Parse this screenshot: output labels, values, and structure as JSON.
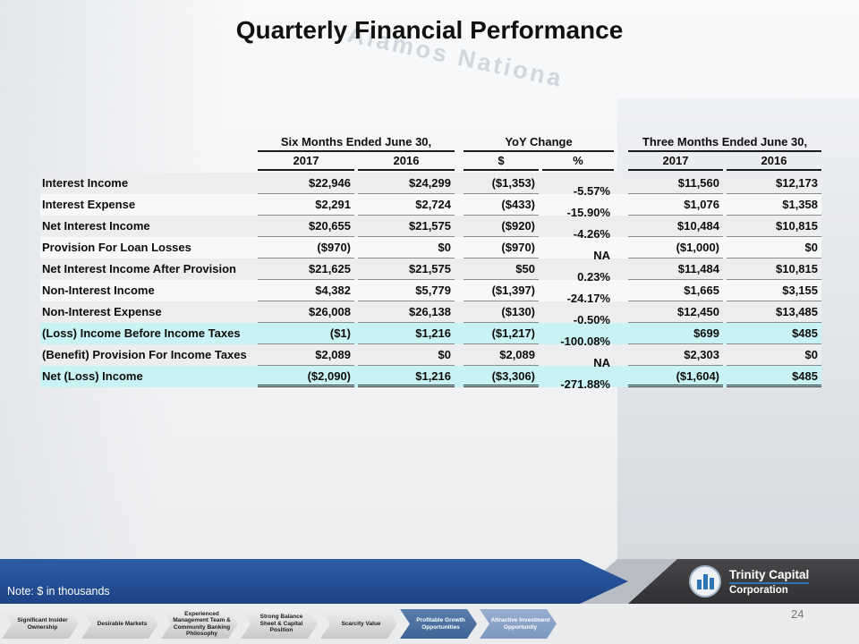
{
  "slide": {
    "title": "Quarterly Financial Performance",
    "watermark_text": "Alamos Nationa",
    "note": "Note: $ in thousands",
    "page_number": "24"
  },
  "logo": {
    "name_line1": "Trinity Capital",
    "name_line2": "Corporation",
    "icon": "building-bars-in-circle",
    "accent_color": "#2e75b6"
  },
  "colors": {
    "highlight_row": "#c9f2f4",
    "banner_blue": "#24549e",
    "band_dark": "#3a3a3c"
  },
  "table": {
    "groups": [
      {
        "label": "Six Months Ended June 30,",
        "columns": [
          "2017",
          "2016"
        ]
      },
      {
        "label": "YoY Change",
        "columns": [
          "$",
          "%"
        ]
      },
      {
        "label": "Three Months Ended June 30,",
        "columns": [
          "2017",
          "2016"
        ]
      }
    ],
    "rows": [
      {
        "label": "Interest Income",
        "six_2017": "$22,946",
        "six_2016": "$24,299",
        "yoy_dollar": "($1,353)",
        "yoy_pct": "-5.57%",
        "three_2017": "$11,560",
        "three_2016": "$12,173",
        "highlight": false
      },
      {
        "label": "Interest Expense",
        "six_2017": "$2,291",
        "six_2016": "$2,724",
        "yoy_dollar": "($433)",
        "yoy_pct": "-15.90%",
        "three_2017": "$1,076",
        "three_2016": "$1,358",
        "highlight": false
      },
      {
        "label": "Net Interest Income",
        "six_2017": "$20,655",
        "six_2016": "$21,575",
        "yoy_dollar": "($920)",
        "yoy_pct": "-4.26%",
        "three_2017": "$10,484",
        "three_2016": "$10,815",
        "highlight": false
      },
      {
        "label": "Provision For Loan Losses",
        "six_2017": "($970)",
        "six_2016": "$0",
        "yoy_dollar": "($970)",
        "yoy_pct": "NA",
        "three_2017": "($1,000)",
        "three_2016": "$0",
        "highlight": false
      },
      {
        "label": "Net Interest Income After Provision",
        "six_2017": "$21,625",
        "six_2016": "$21,575",
        "yoy_dollar": "$50",
        "yoy_pct": "0.23%",
        "three_2017": "$11,484",
        "three_2016": "$10,815",
        "highlight": false
      },
      {
        "label": "Non-Interest Income",
        "six_2017": "$4,382",
        "six_2016": "$5,779",
        "yoy_dollar": "($1,397)",
        "yoy_pct": "-24.17%",
        "three_2017": "$1,665",
        "three_2016": "$3,155",
        "highlight": false
      },
      {
        "label": "Non-Interest Expense",
        "six_2017": "$26,008",
        "six_2016": "$26,138",
        "yoy_dollar": "($130)",
        "yoy_pct": "-0.50%",
        "three_2017": "$12,450",
        "three_2016": "$13,485",
        "highlight": false
      },
      {
        "label": "(Loss) Income Before Income Taxes",
        "six_2017": "($1)",
        "six_2016": "$1,216",
        "yoy_dollar": "($1,217)",
        "yoy_pct": "-100.08%",
        "three_2017": "$699",
        "three_2016": "$485",
        "highlight": true
      },
      {
        "label": "(Benefit) Provision For Income Taxes",
        "six_2017": "$2,089",
        "six_2016": "$0",
        "yoy_dollar": "$2,089",
        "yoy_pct": "NA",
        "three_2017": "$2,303",
        "three_2016": "$0",
        "highlight": false
      },
      {
        "label": "Net (Loss) Income",
        "six_2017": "($2,090)",
        "six_2016": "$1,216",
        "yoy_dollar": "($3,306)",
        "yoy_pct": "-271.88%",
        "three_2017": "($1,604)",
        "three_2016": "$485",
        "highlight": true
      }
    ]
  },
  "footer_chevrons": [
    {
      "label": "Significant Insider Ownership",
      "style": "gray"
    },
    {
      "label": "Desirable Markets",
      "style": "gray"
    },
    {
      "label": "Experienced Management Team & Community Banking Philosophy",
      "style": "gray"
    },
    {
      "label": "Strong Balance Sheet & Capital Position",
      "style": "gray"
    },
    {
      "label": "Scarcity Value",
      "style": "gray"
    },
    {
      "label": "Profitable Growth Opportunities",
      "style": "blue-dark"
    },
    {
      "label": "Attractive Investment Opportunity",
      "style": "blue-light"
    }
  ]
}
